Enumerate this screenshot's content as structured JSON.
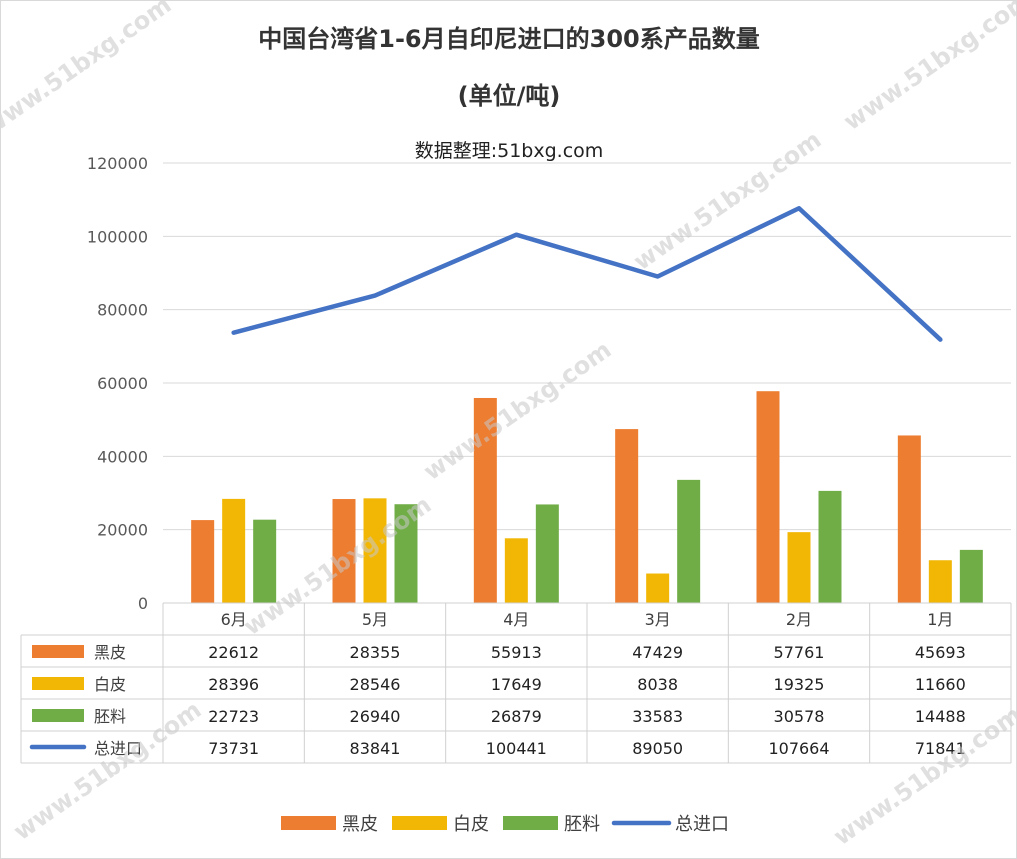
{
  "chart_data": {
    "type": "bar",
    "title": "中国台湾省1-6月自印尼进口的300系产品数量",
    "title_unit": "(单位/吨)",
    "subtitle": "数据整理:51bxg.com",
    "categories": [
      "6月",
      "5月",
      "4月",
      "3月",
      "2月",
      "1月"
    ],
    "series": [
      {
        "name": "黑皮",
        "kind": "bar",
        "color": "#ED7D31",
        "values": [
          22612,
          28355,
          55913,
          47429,
          57761,
          45693
        ]
      },
      {
        "name": "白皮",
        "kind": "bar",
        "color": "#F2B705",
        "values": [
          28396,
          28546,
          17649,
          8038,
          19325,
          11660
        ]
      },
      {
        "name": "胚料",
        "kind": "bar",
        "color": "#70AD47",
        "values": [
          22723,
          26940,
          26879,
          33583,
          30578,
          14488
        ]
      },
      {
        "name": "总进口",
        "kind": "line",
        "color": "#4472C4",
        "values": [
          73731,
          83841,
          100441,
          89050,
          107664,
          71841
        ]
      }
    ],
    "ylim": [
      0,
      120000
    ],
    "yticks": [
      "0",
      "20000",
      "40000",
      "60000",
      "80000",
      "100000",
      "120000"
    ],
    "data_table": true,
    "legend_position": "bottom",
    "watermark": "www.51bxg.com"
  }
}
